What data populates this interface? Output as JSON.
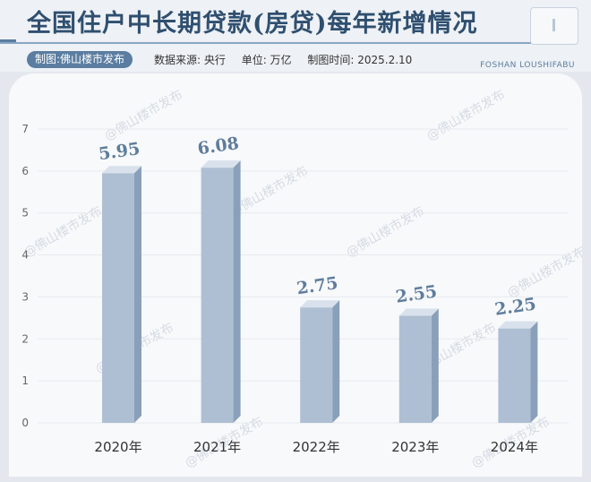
{
  "header": {
    "title": "全国住户中长期贷款(房贷)每年新增情况",
    "source_tag": "制图:佛山楼市发布",
    "data_source": "数据来源: 央行",
    "unit": "单位: 万亿",
    "date": "制图时间: 2025.2.10",
    "brand": "FOSHAN LOUSHIFABU"
  },
  "watermark": "@佛山楼市发布",
  "chart_data": {
    "type": "bar",
    "title": "全国住户中长期贷款(房贷)每年新增情况",
    "categories": [
      "2020年",
      "2021年",
      "2022年",
      "2023年",
      "2024年"
    ],
    "values": [
      5.95,
      6.08,
      2.75,
      2.55,
      2.25
    ],
    "ylim": [
      0,
      7
    ],
    "yticks": [
      0,
      1,
      2,
      3,
      4,
      5,
      6,
      7
    ],
    "grid": true,
    "colors": {
      "bar_front": "#aebfd3",
      "bar_side": "#8aa0ba",
      "bar_top": "#d8e1ec",
      "label": "#5f7d9c"
    }
  }
}
